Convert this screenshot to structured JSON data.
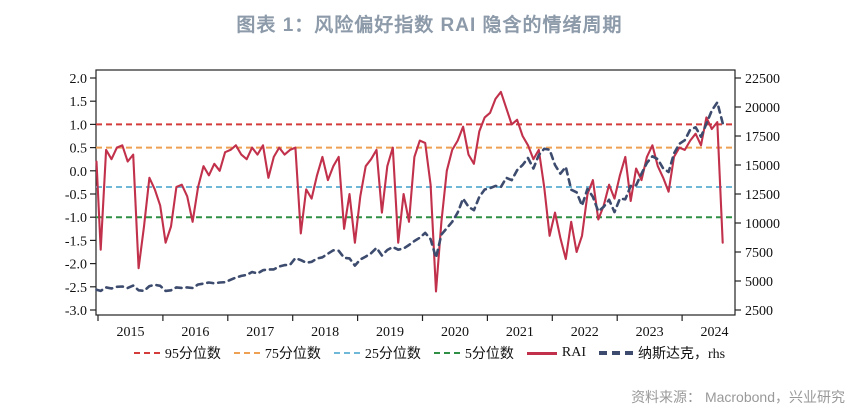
{
  "title": {
    "text": "图表 1：风险偏好指数 RAI 隐含的情绪周期",
    "color": "#8C9AA9"
  },
  "source": {
    "text": "资料来源： Macrobond，兴业研究",
    "color": "#999999"
  },
  "legend": {
    "items": [
      {
        "label": "95分位数",
        "color": "#D43B3B",
        "style": "dashed-thin"
      },
      {
        "label": "75分位数",
        "color": "#EFA153",
        "style": "dashed-thin"
      },
      {
        "label": "25分位数",
        "color": "#70B8D8",
        "style": "dashed-thin"
      },
      {
        "label": "5分位数",
        "color": "#2F8F45",
        "style": "dashed-thin"
      },
      {
        "label": "RAI",
        "color": "#C2314B",
        "style": "solid-thick"
      },
      {
        "label": "纳斯达克，rhs",
        "color": "#3D4C6E",
        "style": "dashed-thick"
      }
    ]
  },
  "chart_data": {
    "type": "line",
    "title": "图表 1：风险偏好指数 RAI 隐含的情绪周期",
    "x_start": {
      "year": 2014,
      "month": 12
    },
    "x_step": "monthly",
    "x_ticks": [
      2015,
      2016,
      2017,
      2018,
      2019,
      2020,
      2021,
      2022,
      2023,
      2024
    ],
    "left_axis": {
      "min": -3.0,
      "max": 2.0,
      "tick_labels": [
        "2.0",
        "1.5",
        "1.0",
        "0.5",
        "0.0",
        "-0.5",
        "-1.0",
        "-1.5",
        "-2.0",
        "-2.5",
        "-3.0"
      ]
    },
    "right_axis": {
      "min": 2500,
      "max": 22500,
      "tick_labels": [
        "22500",
        "20000",
        "17500",
        "15000",
        "12500",
        "10000",
        "7500",
        "5000",
        "2500"
      ]
    },
    "reference_lines": [
      {
        "name": "95分位数",
        "value": 1.0,
        "color": "#D43B3B"
      },
      {
        "name": "75分位数",
        "value": 0.5,
        "color": "#EFA153"
      },
      {
        "name": "25分位数",
        "value": -0.35,
        "color": "#70B8D8"
      },
      {
        "name": "5分位数",
        "value": -1.0,
        "color": "#2F8F45"
      }
    ],
    "series": [
      {
        "name": "RAI",
        "axis": "left",
        "color": "#C2314B",
        "style": "solid",
        "values": [
          0.2,
          -1.7,
          0.45,
          0.25,
          0.5,
          0.55,
          0.2,
          0.35,
          -2.1,
          -1.2,
          -0.15,
          -0.4,
          -0.75,
          -1.55,
          -1.2,
          -0.35,
          -0.3,
          -0.55,
          -1.1,
          -0.35,
          0.1,
          -0.1,
          0.15,
          0.0,
          0.4,
          0.45,
          0.55,
          0.35,
          0.25,
          0.5,
          0.35,
          0.55,
          -0.15,
          0.3,
          0.5,
          0.35,
          0.45,
          0.5,
          -1.35,
          -0.4,
          -0.6,
          -0.1,
          0.3,
          -0.2,
          0.1,
          0.3,
          -1.25,
          -0.5,
          -1.55,
          -0.55,
          0.1,
          0.25,
          0.45,
          -0.9,
          0.1,
          0.5,
          -1.55,
          -0.5,
          -1.1,
          0.3,
          0.65,
          0.6,
          -0.3,
          -2.6,
          -1.1,
          0.0,
          0.45,
          0.65,
          0.95,
          0.35,
          0.15,
          0.85,
          1.15,
          1.25,
          1.55,
          1.7,
          1.35,
          1.0,
          1.1,
          0.75,
          0.55,
          0.25,
          0.45,
          -0.35,
          -1.4,
          -0.9,
          -1.45,
          -1.9,
          -1.1,
          -1.75,
          -1.4,
          -0.5,
          -0.2,
          -1.05,
          -0.75,
          -0.3,
          -0.6,
          -0.1,
          0.3,
          -0.65,
          0.05,
          -0.2,
          0.3,
          0.55,
          0.1,
          -0.15,
          -0.45,
          0.3,
          0.5,
          0.45,
          0.65,
          0.8,
          0.55,
          1.15,
          0.9,
          1.05,
          -1.55
        ]
      },
      {
        "name": "纳斯达克",
        "axis": "right",
        "color": "#3D4C6E",
        "style": "dashed",
        "values": [
          4250,
          4150,
          4450,
          4350,
          4500,
          4530,
          4400,
          4600,
          4200,
          4150,
          4560,
          4670,
          4590,
          4150,
          4200,
          4450,
          4400,
          4450,
          4400,
          4700,
          4780,
          4870,
          4800,
          4870,
          4900,
          5100,
          5300,
          5440,
          5530,
          5780,
          5650,
          5930,
          5990,
          6000,
          6250,
          6370,
          6400,
          6970,
          6800,
          6580,
          6650,
          6940,
          7040,
          7350,
          7650,
          7600,
          7000,
          6950,
          6330,
          6850,
          7100,
          7400,
          7850,
          7200,
          7670,
          7930,
          7700,
          7800,
          8100,
          8450,
          8730,
          9150,
          8600,
          7000,
          9000,
          9550,
          10100,
          10900,
          12100,
          11400,
          11100,
          12250,
          12890,
          13000,
          13200,
          13100,
          13900,
          13690,
          14550,
          15000,
          15600,
          14700,
          15850,
          16400,
          16320,
          15000,
          14250,
          14840,
          12870,
          12650,
          11500,
          12950,
          12250,
          11000,
          11400,
          12000,
          10940,
          12100,
          12040,
          13200,
          13250,
          14250,
          15180,
          15750,
          15500,
          14700,
          14400,
          16000,
          16830,
          17140,
          18040,
          18250,
          17440,
          18550,
          19700,
          20400,
          18600
        ]
      }
    ]
  }
}
